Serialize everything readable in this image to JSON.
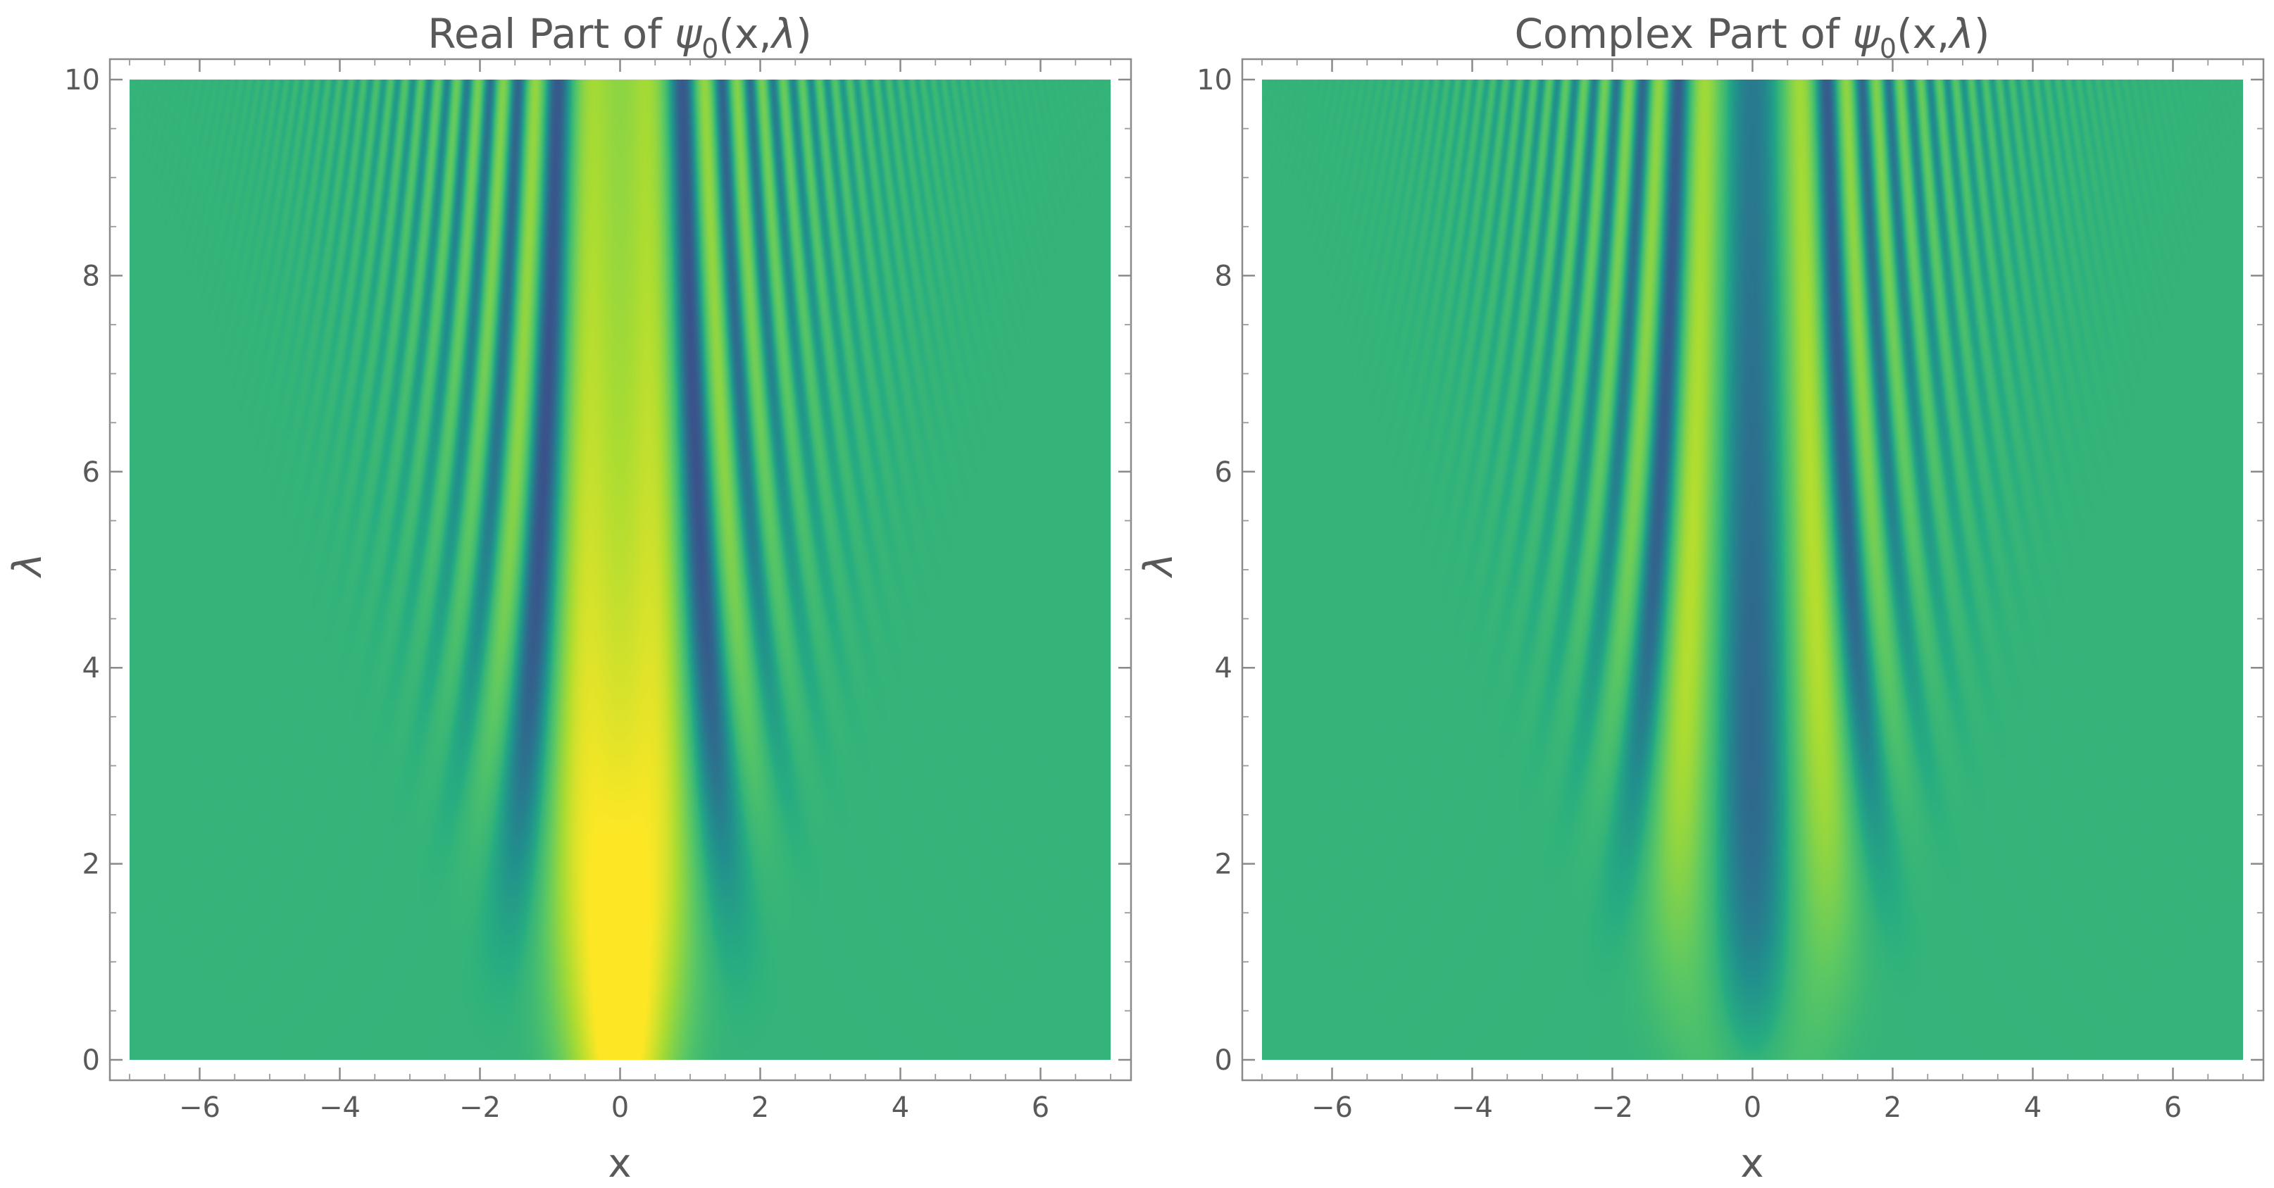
{
  "chart_data": [
    {
      "type": "heatmap",
      "title_prefix": "Real Part of ",
      "title_psi": "ψ",
      "title_sub": "0",
      "title_args": "(x,",
      "title_lambda": "λ",
      "title_close": ")",
      "xlabel": "x",
      "ylabel": "λ",
      "xlim": [
        -7,
        7
      ],
      "ylim": [
        0,
        10
      ],
      "xticks": [
        -6,
        -4,
        -2,
        0,
        2,
        4,
        6
      ],
      "xtick_labels": [
        "−6",
        "−4",
        "−2",
        "0",
        "2",
        "4",
        "6"
      ],
      "yticks": [
        0,
        2,
        4,
        6,
        8,
        10
      ],
      "ytick_labels": [
        "0",
        "2",
        "4",
        "6",
        "8",
        "10"
      ],
      "component": "real",
      "colormap": "viridis"
    },
    {
      "type": "heatmap",
      "title_prefix": "Complex Part of ",
      "title_psi": "ψ",
      "title_sub": "0",
      "title_args": "(x,",
      "title_lambda": "λ",
      "title_close": ")",
      "xlabel": "x",
      "ylabel": "λ",
      "xlim": [
        -7,
        7
      ],
      "ylim": [
        0,
        10
      ],
      "xticks": [
        -6,
        -4,
        -2,
        0,
        2,
        4,
        6
      ],
      "xtick_labels": [
        "−6",
        "−4",
        "−2",
        "0",
        "2",
        "4",
        "6"
      ],
      "yticks": [
        0,
        2,
        4,
        6,
        8,
        10
      ],
      "ytick_labels": [
        "0",
        "2",
        "4",
        "6",
        "8",
        "10"
      ],
      "component": "imaginary",
      "colormap": "viridis"
    }
  ],
  "colors": {
    "background_field": "#2ca586",
    "low": "#21145f",
    "high": "#e8e45a",
    "axis": "#8a8a8a",
    "text": "#595959"
  }
}
